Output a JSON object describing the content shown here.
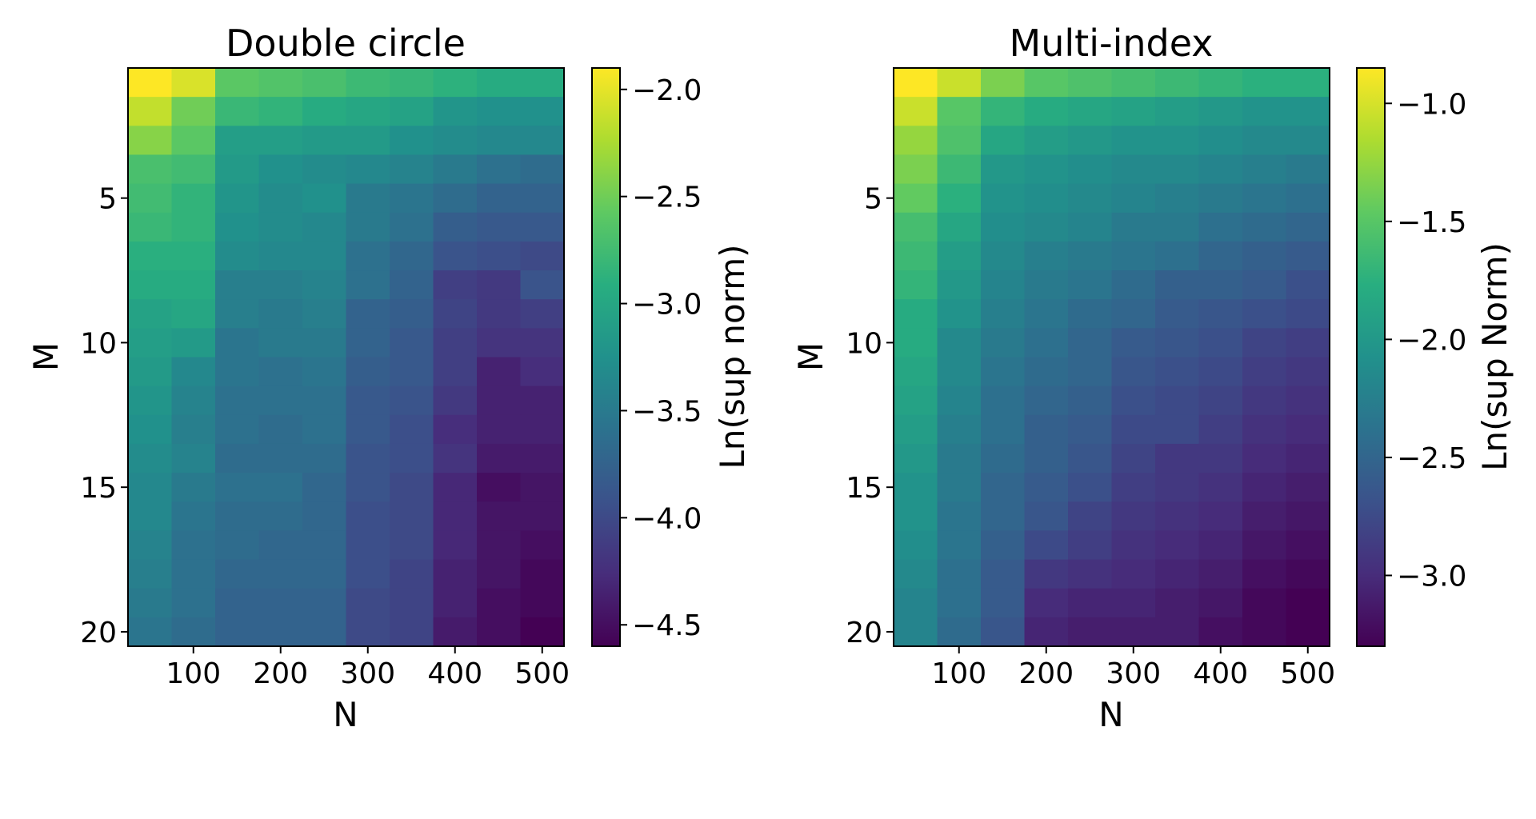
{
  "chart_data": [
    {
      "type": "heatmap",
      "title": "Double circle",
      "xlabel": "N",
      "ylabel": "M",
      "x": [
        50,
        100,
        150,
        200,
        250,
        300,
        350,
        400,
        450,
        500
      ],
      "y": [
        1,
        2,
        3,
        4,
        5,
        6,
        7,
        8,
        9,
        10,
        11,
        12,
        13,
        14,
        15,
        16,
        17,
        18,
        19,
        20
      ],
      "x_ticks": [
        100,
        200,
        300,
        400,
        500
      ],
      "y_ticks": [
        5,
        10,
        15,
        20
      ],
      "colormap": "viridis",
      "colorbar": {
        "label": "Ln(sup norm)",
        "range": [
          -4.6,
          -1.9
        ],
        "ticks": [
          -2.0,
          -2.5,
          -3.0,
          -3.5,
          -4.0,
          -4.5
        ],
        "tick_labels": [
          "−2.0",
          "−2.5",
          "−3.0",
          "−3.5",
          "−4.0",
          "−4.5"
        ]
      },
      "values": [
        [
          -1.9,
          -2.05,
          -2.6,
          -2.65,
          -2.7,
          -2.78,
          -2.82,
          -2.88,
          -2.95,
          -2.95
        ],
        [
          -2.15,
          -2.5,
          -2.8,
          -2.85,
          -2.95,
          -3.0,
          -3.05,
          -3.2,
          -3.25,
          -3.25
        ],
        [
          -2.4,
          -2.6,
          -3.1,
          -3.1,
          -3.15,
          -3.15,
          -3.25,
          -3.3,
          -3.35,
          -3.35
        ],
        [
          -2.7,
          -2.75,
          -3.15,
          -3.25,
          -3.3,
          -3.35,
          -3.4,
          -3.5,
          -3.6,
          -3.65
        ],
        [
          -2.75,
          -2.85,
          -3.2,
          -3.3,
          -3.25,
          -3.5,
          -3.55,
          -3.65,
          -3.75,
          -3.75
        ],
        [
          -2.8,
          -2.85,
          -3.25,
          -3.3,
          -3.35,
          -3.5,
          -3.6,
          -3.8,
          -3.85,
          -3.85
        ],
        [
          -2.9,
          -2.9,
          -3.3,
          -3.35,
          -3.35,
          -3.6,
          -3.7,
          -3.9,
          -3.95,
          -4.0
        ],
        [
          -2.95,
          -2.95,
          -3.45,
          -3.45,
          -3.4,
          -3.6,
          -3.75,
          -4.1,
          -4.15,
          -3.9
        ],
        [
          -3.05,
          -3.0,
          -3.45,
          -3.5,
          -3.45,
          -3.75,
          -3.8,
          -4.05,
          -4.15,
          -4.1
        ],
        [
          -3.1,
          -3.15,
          -3.55,
          -3.5,
          -3.5,
          -3.75,
          -3.85,
          -4.1,
          -4.2,
          -4.2
        ],
        [
          -3.15,
          -3.35,
          -3.55,
          -3.6,
          -3.55,
          -3.8,
          -3.85,
          -4.1,
          -4.35,
          -4.25
        ],
        [
          -3.2,
          -3.4,
          -3.6,
          -3.6,
          -3.6,
          -3.85,
          -3.9,
          -4.15,
          -4.35,
          -4.35
        ],
        [
          -3.25,
          -3.45,
          -3.6,
          -3.65,
          -3.6,
          -3.85,
          -3.95,
          -4.25,
          -4.35,
          -4.35
        ],
        [
          -3.3,
          -3.4,
          -3.65,
          -3.65,
          -3.65,
          -3.9,
          -3.95,
          -4.2,
          -4.4,
          -4.4
        ],
        [
          -3.35,
          -3.5,
          -3.6,
          -3.6,
          -3.7,
          -3.9,
          -4.0,
          -4.3,
          -4.5,
          -4.45
        ],
        [
          -3.35,
          -3.55,
          -3.65,
          -3.65,
          -3.7,
          -3.95,
          -4.0,
          -4.3,
          -4.45,
          -4.45
        ],
        [
          -3.4,
          -3.6,
          -3.65,
          -3.7,
          -3.7,
          -3.95,
          -4.0,
          -4.3,
          -4.45,
          -4.5
        ],
        [
          -3.45,
          -3.6,
          -3.7,
          -3.7,
          -3.7,
          -3.95,
          -4.05,
          -4.35,
          -4.45,
          -4.55
        ],
        [
          -3.5,
          -3.6,
          -3.75,
          -3.75,
          -3.75,
          -4.0,
          -4.05,
          -4.35,
          -4.5,
          -4.55
        ],
        [
          -3.55,
          -3.65,
          -3.75,
          -3.75,
          -3.75,
          -4.0,
          -4.05,
          -4.4,
          -4.5,
          -4.6
        ]
      ]
    },
    {
      "type": "heatmap",
      "title": "Multi-index",
      "xlabel": "N",
      "ylabel": "M",
      "x": [
        50,
        100,
        150,
        200,
        250,
        300,
        350,
        400,
        450,
        500
      ],
      "y": [
        1,
        2,
        3,
        4,
        5,
        6,
        7,
        8,
        9,
        10,
        11,
        12,
        13,
        14,
        15,
        16,
        17,
        18,
        19,
        20
      ],
      "x_ticks": [
        100,
        200,
        300,
        400,
        500
      ],
      "y_ticks": [
        5,
        10,
        15,
        20
      ],
      "colormap": "viridis",
      "colorbar": {
        "label": "Ln(sup Norm)",
        "range": [
          -3.3,
          -0.85
        ],
        "ticks": [
          -1.0,
          -1.5,
          -2.0,
          -2.5,
          -3.0
        ],
        "tick_labels": [
          "−1.0",
          "−1.5",
          "−2.0",
          "−2.5",
          "−3.0"
        ]
      },
      "values": [
        [
          -0.85,
          -1.05,
          -1.35,
          -1.5,
          -1.55,
          -1.6,
          -1.65,
          -1.7,
          -1.75,
          -1.75
        ],
        [
          -1.05,
          -1.5,
          -1.7,
          -1.8,
          -1.85,
          -1.9,
          -1.95,
          -2.0,
          -2.05,
          -2.05
        ],
        [
          -1.25,
          -1.55,
          -1.85,
          -1.95,
          -2.0,
          -2.05,
          -2.05,
          -2.1,
          -2.15,
          -2.15
        ],
        [
          -1.35,
          -1.65,
          -2.0,
          -2.05,
          -2.1,
          -2.15,
          -2.15,
          -2.2,
          -2.25,
          -2.3
        ],
        [
          -1.45,
          -1.75,
          -2.05,
          -2.1,
          -2.15,
          -2.2,
          -2.25,
          -2.3,
          -2.35,
          -2.4
        ],
        [
          -1.6,
          -1.85,
          -2.1,
          -2.15,
          -2.2,
          -2.3,
          -2.3,
          -2.4,
          -2.45,
          -2.5
        ],
        [
          -1.65,
          -1.95,
          -2.15,
          -2.25,
          -2.3,
          -2.35,
          -2.4,
          -2.5,
          -2.55,
          -2.6
        ],
        [
          -1.7,
          -2.0,
          -2.2,
          -2.3,
          -2.35,
          -2.45,
          -2.55,
          -2.55,
          -2.6,
          -2.7
        ],
        [
          -1.8,
          -2.05,
          -2.25,
          -2.35,
          -2.45,
          -2.5,
          -2.6,
          -2.65,
          -2.7,
          -2.75
        ],
        [
          -1.8,
          -2.15,
          -2.3,
          -2.4,
          -2.5,
          -2.6,
          -2.65,
          -2.7,
          -2.8,
          -2.85
        ],
        [
          -1.85,
          -2.15,
          -2.35,
          -2.45,
          -2.5,
          -2.65,
          -2.7,
          -2.75,
          -2.85,
          -2.9
        ],
        [
          -1.9,
          -2.2,
          -2.4,
          -2.5,
          -2.55,
          -2.7,
          -2.75,
          -2.8,
          -2.9,
          -2.95
        ],
        [
          -1.95,
          -2.25,
          -2.4,
          -2.55,
          -2.6,
          -2.75,
          -2.75,
          -2.85,
          -2.95,
          -3.0
        ],
        [
          -2.0,
          -2.3,
          -2.45,
          -2.55,
          -2.65,
          -2.8,
          -2.9,
          -2.9,
          -3.0,
          -3.05
        ],
        [
          -2.05,
          -2.3,
          -2.5,
          -2.6,
          -2.7,
          -2.85,
          -2.9,
          -2.95,
          -3.05,
          -3.1
        ],
        [
          -2.05,
          -2.35,
          -2.5,
          -2.65,
          -2.8,
          -2.9,
          -2.95,
          -3.0,
          -3.1,
          -3.15
        ],
        [
          -2.1,
          -2.35,
          -2.55,
          -2.75,
          -2.85,
          -2.95,
          -3.0,
          -3.05,
          -3.15,
          -3.2
        ],
        [
          -2.15,
          -2.4,
          -2.6,
          -2.9,
          -2.95,
          -3.0,
          -3.05,
          -3.1,
          -3.2,
          -3.25
        ],
        [
          -2.2,
          -2.4,
          -2.6,
          -3.0,
          -3.05,
          -3.05,
          -3.1,
          -3.15,
          -3.25,
          -3.3
        ],
        [
          -2.2,
          -2.45,
          -2.65,
          -3.05,
          -3.1,
          -3.1,
          -3.1,
          -3.2,
          -3.25,
          -3.3
        ]
      ]
    }
  ]
}
